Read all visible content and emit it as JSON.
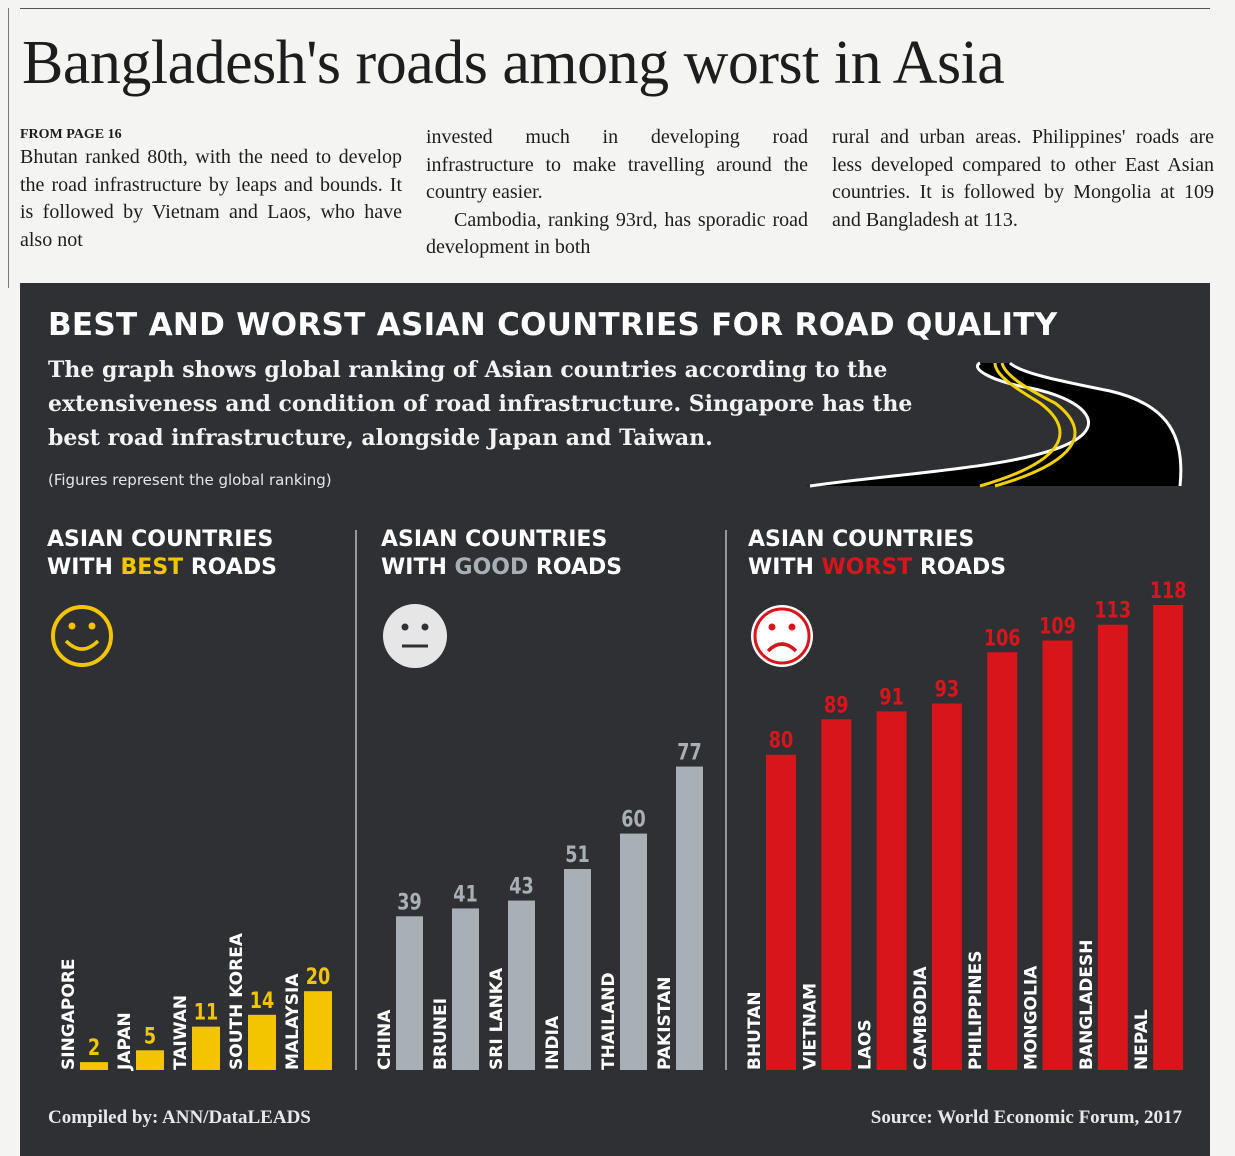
{
  "article": {
    "headline": "Bangladesh's roads among worst in Asia",
    "kicker": "FROM PAGE 16",
    "col1": "Bhutan ranked 80th, with the need to develop the road infrastructure by leaps and bounds. It is followed by Vietnam and Laos, who have also not",
    "col2a": "invested much in developing road infrastructure to make travelling around the country easier.",
    "col2b": "Cambodia, ranking 93rd, has sporadic road development in both",
    "col3": "rural and urban areas. Philippines' roads are less developed compared to other East Asian countries. It is followed by Mongolia at 109 and Bangladesh at 113."
  },
  "infographic": {
    "title": "BEST AND WORST ASIAN COUNTRIES FOR ROAD QUALITY",
    "description": "The graph shows global ranking of Asian countries according to the extensiveness and condition of road infrastructure. Singapore has the best road infrastructure, alongside Japan and Taiwan.",
    "note": "(Figures represent the global ranking)",
    "compiled_by": "Compiled by: ANN/DataLEADS",
    "source": "Source: World Economic Forum, 2017"
  },
  "chart_data": {
    "type": "bar",
    "title": "BEST AND WORST ASIAN COUNTRIES FOR ROAD QUALITY",
    "ylabel": "Global ranking",
    "ylim": [
      0,
      118
    ],
    "grid": false,
    "groups": [
      {
        "line1": "ASIAN COUNTRIES",
        "prefix": "WITH ",
        "keyword": "BEST",
        "suffix": " ROADS",
        "face": "smiley-face",
        "color": "#f2c500",
        "label_color": "#f2c500",
        "categories": [
          "SINGAPORE",
          "JAPAN",
          "TAIWAN",
          "SOUTH KOREA",
          "MALAYSIA"
        ],
        "values": [
          2,
          5,
          11,
          14,
          20
        ]
      },
      {
        "line1": "ASIAN COUNTRIES",
        "prefix": "WITH ",
        "keyword": "GOOD",
        "suffix": " ROADS",
        "face": "neutral-face",
        "color": "#a9b0b5",
        "label_color": "#a9b0b5",
        "categories": [
          "CHINA",
          "BRUNEI",
          "SRI LANKA",
          "INDIA",
          "THAILAND",
          "PAKISTAN"
        ],
        "values": [
          39,
          41,
          43,
          51,
          60,
          77
        ]
      },
      {
        "line1": "ASIAN COUNTRIES",
        "prefix": "WITH ",
        "keyword": "WORST",
        "suffix": " ROADS",
        "face": "sad-face",
        "color": "#d8151b",
        "label_color": "#d8151b",
        "categories": [
          "BHUTAN",
          "VIETNAM",
          "LAOS",
          "CAMBODIA",
          "PHILIPPINES",
          "MONGOLIA",
          "BANGLADESH",
          "NEPAL"
        ],
        "values": [
          80,
          89,
          91,
          93,
          106,
          109,
          113,
          118
        ]
      }
    ]
  }
}
